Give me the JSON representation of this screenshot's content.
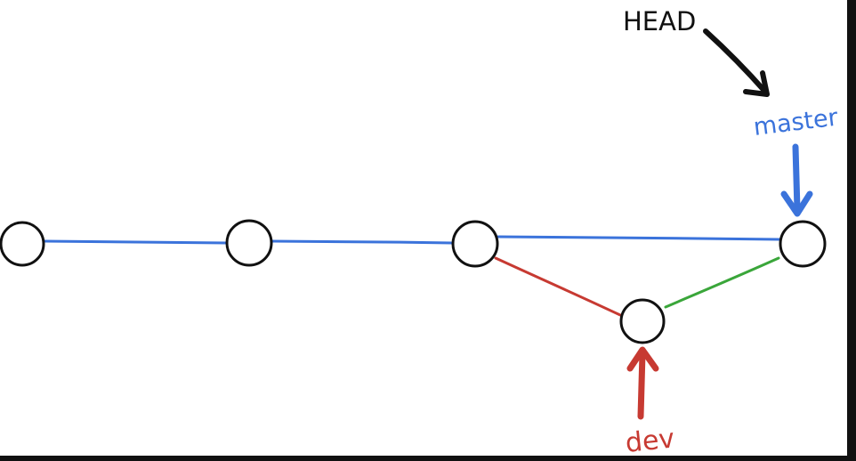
{
  "labels": {
    "head": "HEAD",
    "master": "master",
    "dev": "dev"
  },
  "colors": {
    "master": "#3b73db",
    "dev": "#c73a32",
    "merge": "#3aa63a",
    "head": "#111111",
    "commit_stroke": "#111111",
    "commit_fill": "#ffffff"
  },
  "commits": [
    {
      "id": "c1"
    },
    {
      "id": "c2"
    },
    {
      "id": "c3"
    },
    {
      "id": "c4-dev"
    },
    {
      "id": "c5-merge"
    }
  ],
  "edges": [
    {
      "from": "c1",
      "to": "c2",
      "branch": "master"
    },
    {
      "from": "c2",
      "to": "c3",
      "branch": "master"
    },
    {
      "from": "c3",
      "to": "c5-merge",
      "branch": "master"
    },
    {
      "from": "c3",
      "to": "c4-dev",
      "branch": "dev"
    },
    {
      "from": "c4-dev",
      "to": "c5-merge",
      "branch": "merge"
    }
  ]
}
